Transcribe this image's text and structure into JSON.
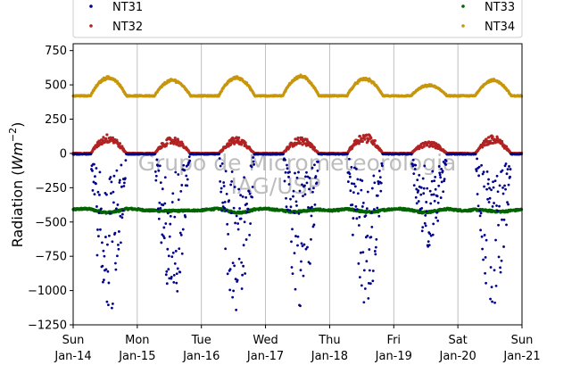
{
  "chart_data": {
    "type": "scatter",
    "title": "",
    "xlabel": "",
    "ylabel": "Radiation (",
    "ylabel_math": "Wm",
    "ylabel_exp": "−2",
    "ylabel_close": ")",
    "ylim": [
      -1250,
      800
    ],
    "yticks": [
      -1250,
      -1000,
      -750,
      -500,
      -250,
      0,
      250,
      500,
      750
    ],
    "yticklabels": [
      "−1250",
      "−1000",
      "−750",
      "−500",
      "−250",
      "0",
      "250",
      "500",
      "750"
    ],
    "xlim": [
      "2021-01-14",
      "2021-01-21"
    ],
    "xticks": [
      {
        "day": "Sun",
        "date": "Jan-14"
      },
      {
        "day": "Mon",
        "date": "Jan-15"
      },
      {
        "day": "Tue",
        "date": "Jan-16"
      },
      {
        "day": "Wed",
        "date": "Jan-17"
      },
      {
        "day": "Thu",
        "date": "Jan-18"
      },
      {
        "day": "Fri",
        "date": "Jan-19"
      },
      {
        "day": "Sat",
        "date": "Jan-20"
      },
      {
        "day": "Sun",
        "date": "Jan-21"
      }
    ],
    "grid": "vertical",
    "legend_position": "top",
    "watermark": [
      "Grupo de Micrometeorologia",
      "IAG/USP"
    ],
    "series": [
      {
        "name": "NT31",
        "color": "#00008b",
        "daily_min": [
          -1200,
          -1100,
          -1180,
          -1130,
          -1170,
          -690,
          -1150
        ],
        "baseline": -5
      },
      {
        "name": "NT32",
        "color": "#b22222",
        "daily_peak": [
          140,
          120,
          120,
          120,
          150,
          90,
          130
        ],
        "baseline": 0
      },
      {
        "name": "NT33",
        "color": "#006400",
        "mean": -410,
        "range": [
          -440,
          -385
        ]
      },
      {
        "name": "NT34",
        "color": "#c8960c",
        "daily_peak": [
          560,
          540,
          560,
          570,
          550,
          500,
          540
        ],
        "night_level": 420
      }
    ]
  },
  "legend": [
    {
      "label": "NT31",
      "color": "#00008b"
    },
    {
      "label": "NT32",
      "color": "#b22222"
    },
    {
      "label": "NT33",
      "color": "#006400"
    },
    {
      "label": "NT34",
      "color": "#c8960c"
    }
  ]
}
